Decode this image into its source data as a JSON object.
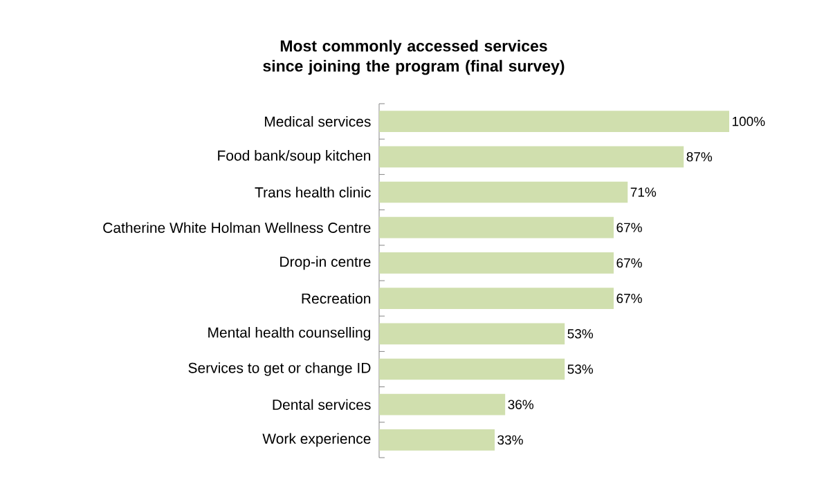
{
  "chart_data": {
    "type": "bar",
    "orientation": "horizontal",
    "title": "Most commonly accessed services since joining the program (final survey)",
    "categories": [
      "Medical services",
      "Food bank/soup kitchen",
      "Trans health clinic",
      "Catherine White Holman Wellness Centre",
      "Drop-in centre",
      "Recreation",
      "Mental health counselling",
      "Services to get or change ID",
      "Dental services",
      "Work experience"
    ],
    "values": [
      100,
      87,
      71,
      67,
      67,
      67,
      53,
      53,
      36,
      33
    ],
    "value_labels": [
      "100%",
      "87%",
      "71%",
      "67%",
      "67%",
      "67%",
      "53%",
      "53%",
      "36%",
      "33%"
    ],
    "color": "#d0dfae"
  }
}
